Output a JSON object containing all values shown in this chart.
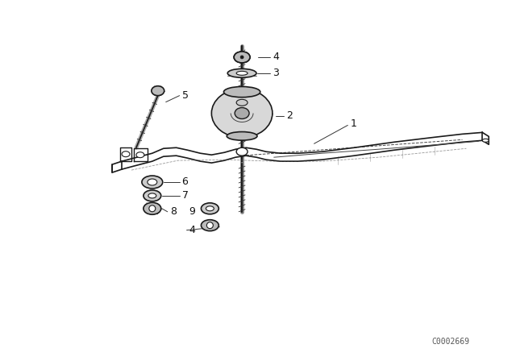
{
  "bg_color": "#ffffff",
  "line_color": "#1a1a1a",
  "fig_width": 6.4,
  "fig_height": 4.48,
  "dpi": 100,
  "watermark": "C0002669",
  "watermark_fontsize": 7,
  "label_fontsize": 9
}
